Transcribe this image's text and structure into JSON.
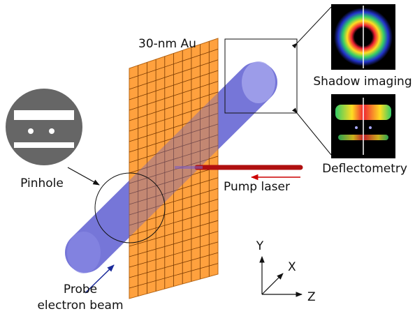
{
  "labels": {
    "foil": "30-nm Au",
    "shadow": "Shadow imaging",
    "deflectometry": "Deflectometry",
    "pinhole": "Pinhole",
    "pump": "Pump laser",
    "probe": [
      "Probe",
      "electron beam"
    ],
    "axes": {
      "y": "Y",
      "x": "X",
      "z": "Z"
    }
  }
}
